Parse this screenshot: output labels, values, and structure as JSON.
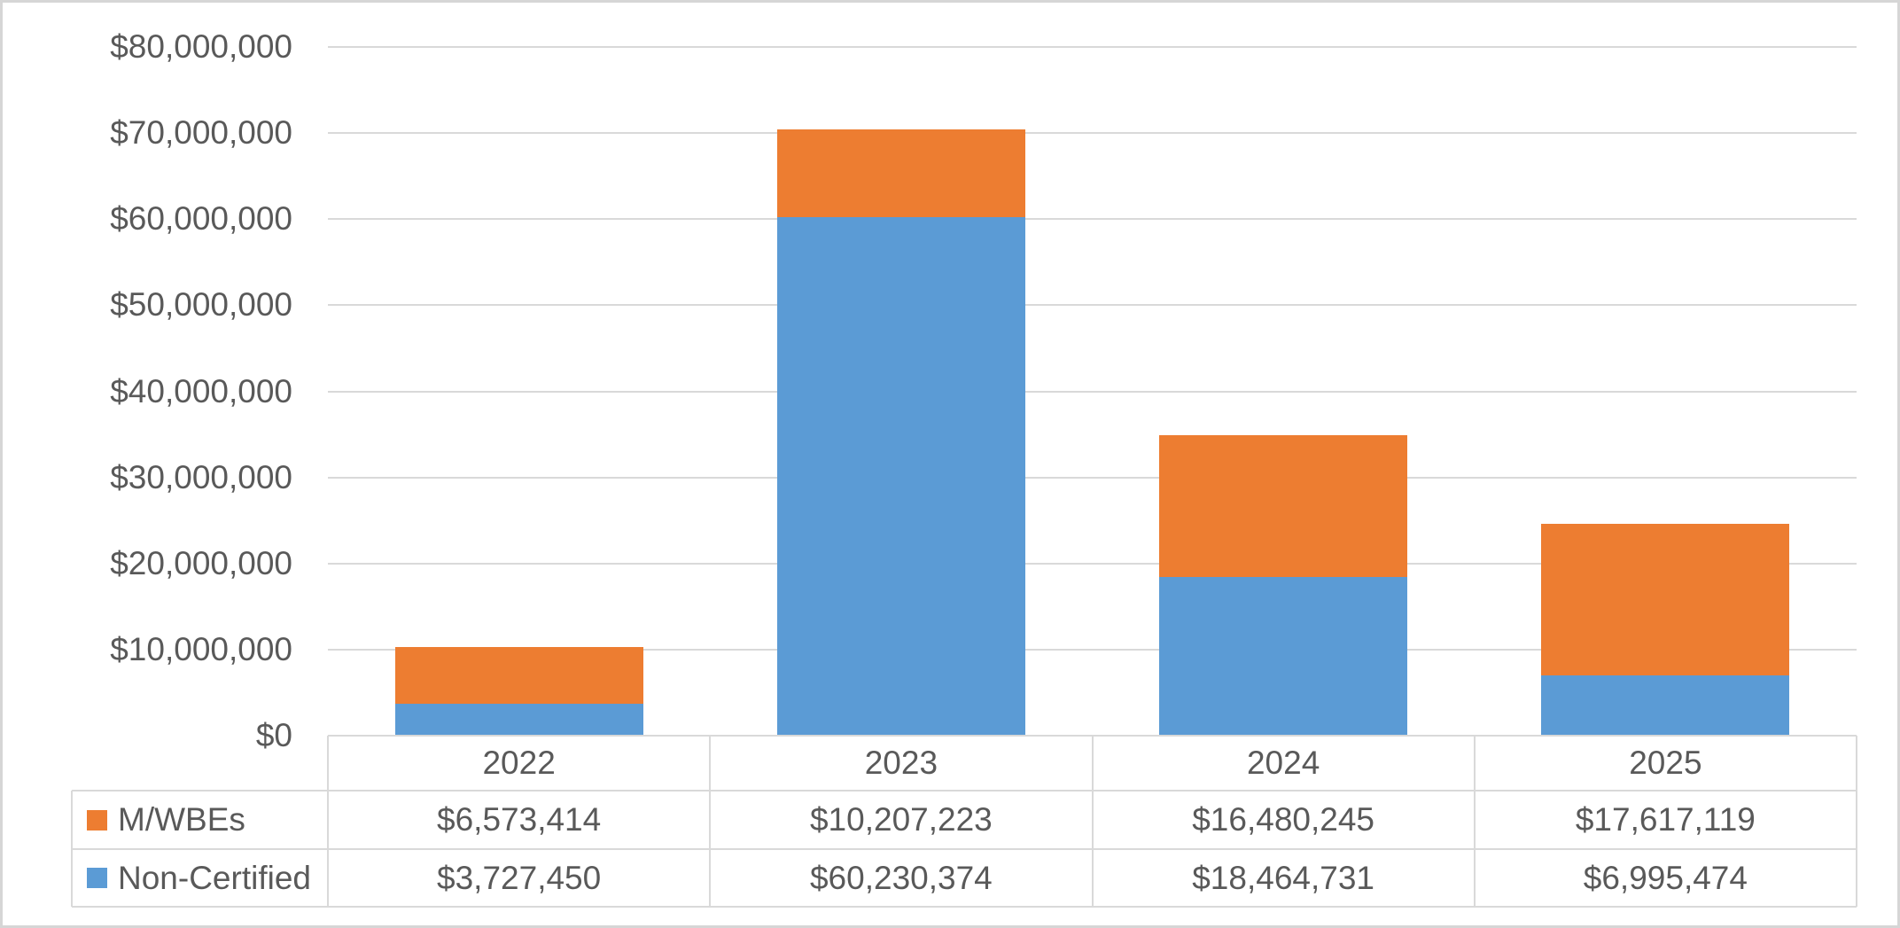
{
  "chart_data": {
    "type": "bar",
    "stacked": true,
    "title": "",
    "xlabel": "",
    "ylabel": "",
    "categories": [
      "2022",
      "2023",
      "2024",
      "2025"
    ],
    "series": [
      {
        "name": "M/WBEs",
        "color": "#ED7D31",
        "stack_position": "top",
        "values": [
          6573414,
          10207223,
          16480245,
          17617119
        ],
        "formatted": [
          "$6,573,414",
          "$10,207,223",
          "$16,480,245",
          "$17,617,119"
        ]
      },
      {
        "name": "Non-Certified",
        "color": "#5B9BD5",
        "stack_position": "bottom",
        "values": [
          3727450,
          60230374,
          18464731,
          6995474
        ],
        "formatted": [
          "$3,727,450",
          "$60,230,374",
          "$18,464,731",
          "$6,995,474"
        ]
      }
    ],
    "ylim": [
      0,
      80000000
    ],
    "y_tick_interval": 10000000,
    "y_ticks": [
      {
        "value": 0,
        "label": "$0"
      },
      {
        "value": 10000000,
        "label": "$10,000,000"
      },
      {
        "value": 20000000,
        "label": "$20,000,000"
      },
      {
        "value": 30000000,
        "label": "$30,000,000"
      },
      {
        "value": 40000000,
        "label": "$40,000,000"
      },
      {
        "value": 50000000,
        "label": "$50,000,000"
      },
      {
        "value": 60000000,
        "label": "$60,000,000"
      },
      {
        "value": 70000000,
        "label": "$70,000,000"
      },
      {
        "value": 80000000,
        "label": "$80,000,000"
      }
    ],
    "grid": true,
    "legend_position": "data-table-left-column",
    "data_table_shown": true
  },
  "colors": {
    "mwbes": "#ED7D31",
    "non_certified": "#5B9BD5",
    "gridline": "#D9D9D9",
    "table_border": "#D9D9D9",
    "text": "#595959",
    "outer_border": "#D6D6D6",
    "background": "#FFFFFF"
  }
}
